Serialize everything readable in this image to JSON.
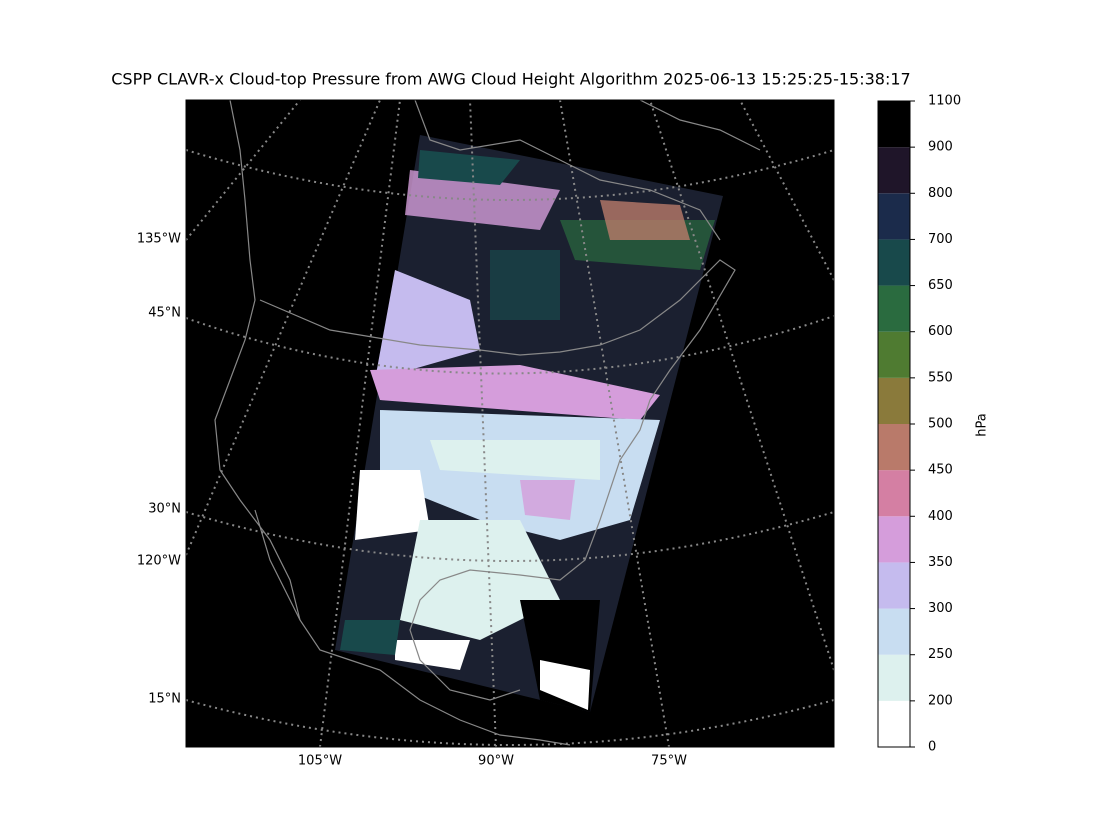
{
  "title": "CSPP CLAVR-x Cloud-top Pressure from AWG Cloud Height Algorithm 2025-06-13 15:25:25-15:38:17",
  "map": {
    "lat_labels": [
      "135°W",
      "45°N",
      "30°N",
      "120°W",
      "15°N"
    ],
    "lon_labels": [
      "105°W",
      "90°W",
      "75°W"
    ]
  },
  "colorbar": {
    "label": "hPa",
    "ticks": [
      0,
      200,
      250,
      300,
      350,
      400,
      450,
      500,
      550,
      600,
      650,
      700,
      800,
      900,
      1100
    ],
    "colors": [
      "#ffffff",
      "#ddf1ee",
      "#c8ddf1",
      "#c5bbee",
      "#d59ddb",
      "#d47fa3",
      "#b97a6a",
      "#8a7a3b",
      "#4f7b31",
      "#2a6b3f",
      "#18494b",
      "#1b2b4b",
      "#1f1529",
      "#000000"
    ]
  }
}
